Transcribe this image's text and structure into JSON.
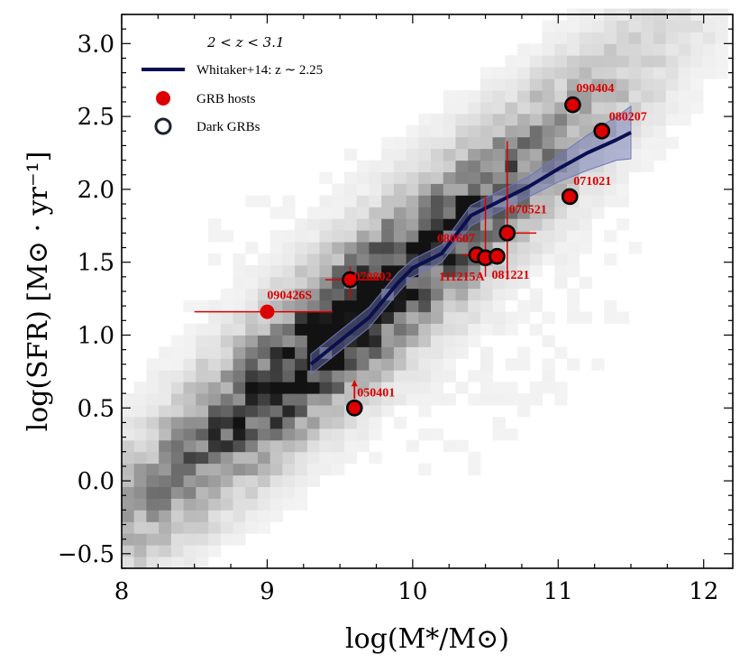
{
  "chart_data": {
    "type": "scatter",
    "xlabel": "log(M*/M⊙)",
    "ylabel": "log(SFR) [M⊙ · yr⁻¹]",
    "xlim": [
      8,
      12.2
    ],
    "ylim": [
      -0.6,
      3.2
    ],
    "xticks": [
      8,
      9,
      10,
      11,
      12
    ],
    "yticks": [
      -0.5,
      0.0,
      0.5,
      1.0,
      1.5,
      2.0,
      2.5,
      3.0
    ],
    "xtick_labels": [
      "8",
      "9",
      "10",
      "11",
      "12"
    ],
    "ytick_labels": [
      "−0.5",
      "0.0",
      "0.5",
      "1.0",
      "1.5",
      "2.0",
      "2.5",
      "3.0"
    ],
    "legend": {
      "title": "2 < z < 3.1",
      "entries": [
        "Whitaker+14: z ∼ 2.25",
        "GRB hosts",
        "Dark GRBs"
      ],
      "position": "top-left"
    },
    "relation": {
      "name": "Whitaker+14: z ∼ 2.25",
      "color": "#0a1050",
      "x": [
        9.3,
        9.5,
        9.7,
        9.9,
        10.0,
        10.2,
        10.4,
        10.6,
        10.8,
        11.0,
        11.2,
        11.4,
        11.5
      ],
      "y": [
        0.8,
        0.96,
        1.12,
        1.36,
        1.46,
        1.56,
        1.82,
        1.92,
        2.02,
        2.14,
        2.25,
        2.34,
        2.39
      ],
      "band_upper": [
        0.87,
        1.03,
        1.19,
        1.43,
        1.52,
        1.62,
        1.89,
        1.99,
        2.09,
        2.23,
        2.37,
        2.5,
        2.57
      ],
      "band_lower": [
        0.73,
        0.89,
        1.05,
        1.29,
        1.4,
        1.5,
        1.75,
        1.85,
        1.95,
        2.05,
        2.13,
        2.2,
        2.21
      ]
    },
    "grb_hosts": [
      {
        "name": "090404",
        "x": 11.1,
        "y": 2.58,
        "dark": true
      },
      {
        "name": "080207",
        "x": 11.3,
        "y": 2.4,
        "dark": true
      },
      {
        "name": "071021",
        "x": 11.08,
        "y": 1.95,
        "dark": true
      },
      {
        "name": "070521",
        "x": 10.65,
        "y": 1.7,
        "dark": true,
        "xerr": [
          0.0,
          0.2
        ],
        "yerr": [
          0.32,
          0.63
        ]
      },
      {
        "name": "080607",
        "x": 10.44,
        "y": 1.55,
        "dark": true,
        "xerr": [
          0.1,
          0.0
        ],
        "yerr": [
          0.0,
          0.0
        ]
      },
      {
        "name": "111215A",
        "x": 10.5,
        "y": 1.53,
        "dark": true,
        "yerr": [
          0.13,
          0.42
        ]
      },
      {
        "name": "081221",
        "x": 10.58,
        "y": 1.54,
        "dark": true
      },
      {
        "name": "070802",
        "x": 9.57,
        "y": 1.38,
        "dark": true,
        "xerr": [
          0.17,
          0.2
        ],
        "yerr": [
          0.13,
          0.09
        ]
      },
      {
        "name": "090426S",
        "x": 9.0,
        "y": 1.16,
        "dark": false,
        "xerr": [
          0.5,
          0.45
        ]
      },
      {
        "name": "050401",
        "x": 9.6,
        "y": 0.5,
        "dark": true,
        "lower_limit": true
      }
    ],
    "colors": {
      "grb_fill": "#dd0000",
      "dark_edge": "#000000",
      "line": "#0a1050",
      "band": "#7078b8",
      "label": "#dd0000"
    }
  }
}
